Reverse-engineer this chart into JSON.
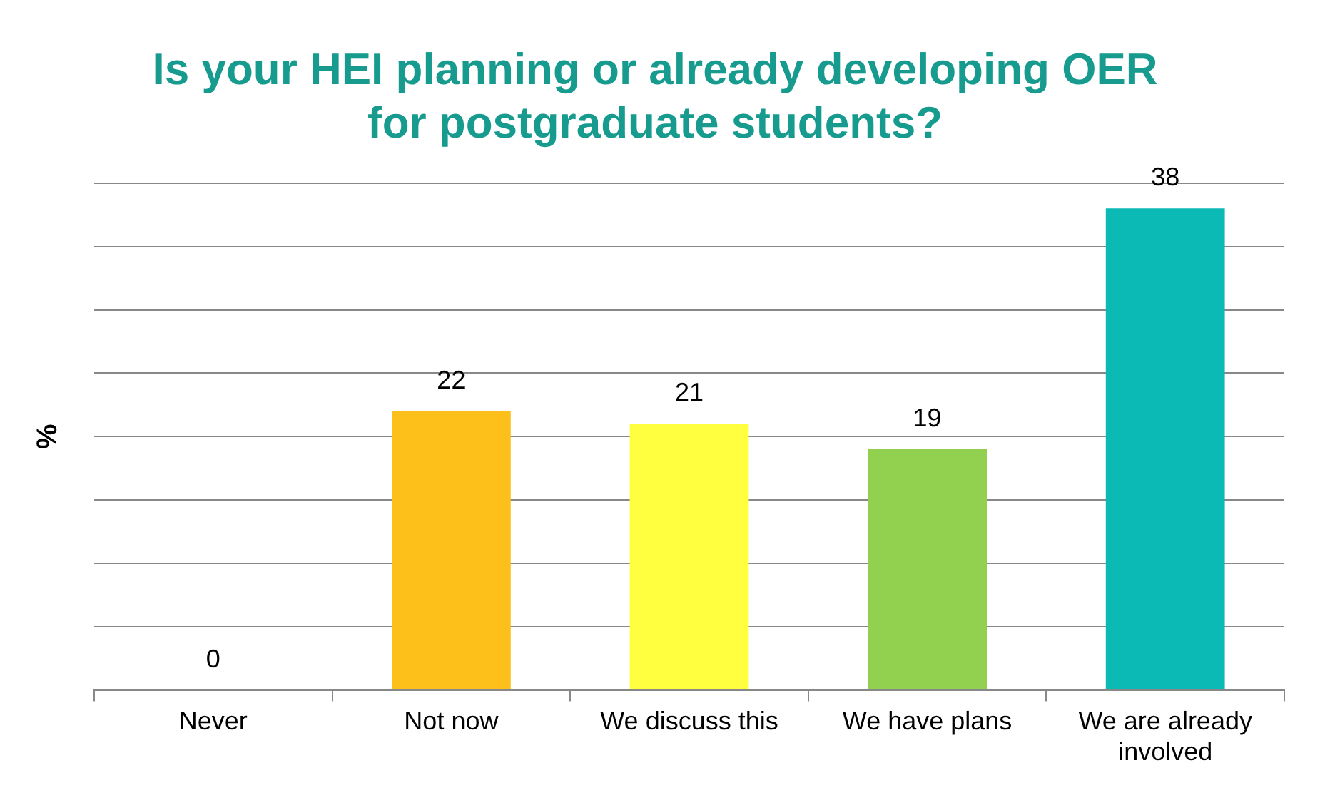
{
  "chart_data": {
    "type": "bar",
    "title": [
      "Is your HEI planning or already developing OER",
      "for postgraduate students?"
    ],
    "ylabel": "%",
    "categories": [
      "Never",
      "Not now",
      "We discuss this",
      "We have plans",
      "We are already involved"
    ],
    "values": [
      0,
      22,
      21,
      19,
      38
    ],
    "colors": [
      "#fdc01a",
      "#fdc01a",
      "#ffff3f",
      "#92d050",
      "#0bbab4"
    ],
    "ylim": [
      0,
      40
    ],
    "yticks": [
      {
        "value": 0,
        "label": null
      },
      {
        "value": 5,
        "label": null
      },
      {
        "value": 10,
        "label": null
      },
      {
        "value": 15,
        "label": null
      },
      {
        "value": 20,
        "label": null
      },
      {
        "value": 25,
        "label": null
      },
      {
        "value": 30,
        "label": null
      },
      {
        "value": 35,
        "label": null
      },
      {
        "value": 40,
        "label": null
      }
    ],
    "tick_labels": "x",
    "grid": "y",
    "data_labels": true,
    "legend": false
  }
}
